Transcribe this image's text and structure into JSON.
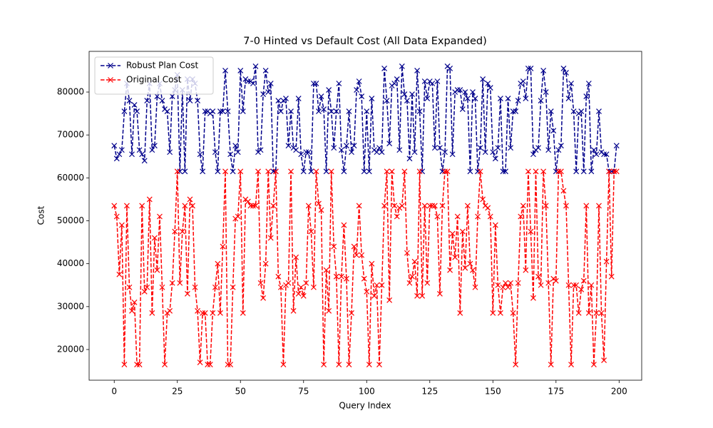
{
  "chart_data": {
    "type": "line",
    "title": "7-0 Hinted vs Default Cost (All Data Expanded)",
    "x_label": "Query Index",
    "y_label": "Cost",
    "legend": "upper left",
    "x": [
      0,
      1,
      2,
      3,
      4,
      5,
      6,
      7,
      8,
      9,
      10,
      11,
      12,
      13,
      14,
      15,
      16,
      17,
      18,
      19,
      20,
      21,
      22,
      23,
      24,
      25,
      26,
      27,
      28,
      29,
      30,
      31,
      32,
      33,
      34,
      35,
      36,
      37,
      38,
      39,
      40,
      41,
      42,
      43,
      44,
      45,
      46,
      47,
      48,
      49,
      50,
      51,
      52,
      53,
      54,
      55,
      56,
      57,
      58,
      59,
      60,
      61,
      62,
      63,
      64,
      65,
      66,
      67,
      68,
      69,
      70,
      71,
      72,
      73,
      74,
      75,
      76,
      77,
      78,
      79,
      80,
      81,
      82,
      83,
      84,
      85,
      86,
      87,
      88,
      89,
      90,
      91,
      92,
      93,
      94,
      95,
      96,
      97,
      98,
      99,
      100,
      101,
      102,
      103,
      104,
      105,
      106,
      107,
      108,
      109,
      110,
      111,
      112,
      113,
      114,
      115,
      116,
      117,
      118,
      119,
      120,
      121,
      122,
      123,
      124,
      125,
      126,
      127,
      128,
      129,
      130,
      131,
      132,
      133,
      134,
      135,
      136,
      137,
      138,
      139,
      140,
      141,
      142,
      143,
      144,
      145,
      146,
      147,
      148,
      149,
      150,
      151,
      152,
      153,
      154,
      155,
      156,
      157,
      158,
      159,
      160,
      161,
      162,
      163,
      164,
      165,
      166,
      167,
      168,
      169,
      170,
      171,
      172,
      173,
      174,
      175,
      176,
      177,
      178,
      179,
      180,
      181,
      182,
      183,
      184,
      185,
      186,
      187,
      188,
      189,
      190,
      191,
      192,
      193,
      194,
      195,
      196,
      197,
      198,
      199
    ],
    "series": [
      {
        "name": "Robust Plan Cost",
        "color": "#00008b",
        "values": [
          67500,
          64500,
          65500,
          66500,
          75500,
          82000,
          78000,
          65500,
          77000,
          75500,
          66500,
          65500,
          64000,
          78000,
          82000,
          66500,
          67500,
          79000,
          82000,
          78000,
          76000,
          75500,
          66000,
          79000,
          80500,
          84000,
          61500,
          80500,
          61500,
          83000,
          78000,
          83000,
          82000,
          78000,
          65500,
          61500,
          75500,
          75500,
          75000,
          75500,
          66000,
          61500,
          75500,
          75500,
          85000,
          75500,
          65500,
          61500,
          67500,
          66000,
          85000,
          75500,
          83000,
          82500,
          82500,
          82000,
          86000,
          66000,
          66500,
          79500,
          85000,
          80000,
          82000,
          61500,
          61500,
          78000,
          75500,
          78000,
          78500,
          67500,
          75500,
          67000,
          66500,
          78500,
          65500,
          61500,
          66000,
          66000,
          61500,
          82000,
          82000,
          75500,
          79000,
          76000,
          61500,
          80500,
          75500,
          67000,
          75500,
          82000,
          66500,
          61500,
          67500,
          75500,
          66000,
          67500,
          80500,
          82500,
          79000,
          61500,
          75500,
          61500,
          78500,
          66500,
          66000,
          67000,
          66000,
          85500,
          78000,
          68000,
          81500,
          82000,
          83000,
          66500,
          86000,
          79500,
          78000,
          64500,
          79500,
          66000,
          85000,
          75500,
          61500,
          82500,
          78500,
          82500,
          82000,
          67000,
          82500,
          67000,
          61500,
          66000,
          86000,
          85500,
          65500,
          80000,
          80500,
          80500,
          76000,
          80000,
          78500,
          61500,
          80000,
          78500,
          61500,
          67000,
          83000,
          66000,
          82000,
          81000,
          66000,
          64500,
          67000,
          78500,
          61500,
          61500,
          78500,
          67000,
          75500,
          75500,
          78000,
          82000,
          82500,
          78500,
          85500,
          85500,
          65500,
          66500,
          67000,
          78000,
          85000,
          80000,
          66500,
          75500,
          71000,
          61500,
          66500,
          67500,
          85500,
          84500,
          78500,
          82000,
          75500,
          61500,
          75000,
          75500,
          61500,
          79000,
          82000,
          61500,
          66500,
          65500,
          75500,
          66000,
          65500,
          65500,
          61500,
          61500,
          61500,
          67500
        ]
      },
      {
        "name": "Original Cost",
        "color": "#ff0000",
        "values": [
          53500,
          51000,
          37500,
          49000,
          16500,
          53500,
          34500,
          29000,
          31000,
          16500,
          16500,
          53500,
          33500,
          34500,
          55000,
          28500,
          46000,
          38500,
          51000,
          34500,
          16500,
          28500,
          29000,
          35500,
          47500,
          61500,
          35500,
          47500,
          53500,
          33000,
          55000,
          53500,
          34500,
          29000,
          17000,
          28500,
          28500,
          16500,
          16500,
          28500,
          34500,
          40000,
          28500,
          44000,
          61500,
          16500,
          16500,
          34500,
          50500,
          51000,
          61500,
          28500,
          55000,
          54500,
          53500,
          53500,
          53500,
          61500,
          35500,
          32000,
          40000,
          61500,
          46000,
          53500,
          61500,
          37000,
          34500,
          16500,
          35000,
          35500,
          61500,
          29000,
          41500,
          33000,
          34500,
          32500,
          35500,
          53500,
          47500,
          34500,
          61500,
          54000,
          52500,
          16500,
          38500,
          29000,
          61500,
          44000,
          37000,
          16500,
          37000,
          49000,
          36500,
          16500,
          28500,
          44000,
          42000,
          53500,
          42000,
          36500,
          33500,
          16500,
          40000,
          32500,
          35000,
          16500,
          35000,
          53500,
          61500,
          31500,
          61500,
          53500,
          51000,
          53000,
          53500,
          61500,
          42500,
          35500,
          37000,
          40500,
          32500,
          61500,
          32500,
          53500,
          35500,
          53500,
          53500,
          53500,
          51000,
          33000,
          53500,
          61500,
          61500,
          38500,
          47000,
          41500,
          51000,
          28500,
          47500,
          39000,
          53500,
          40000,
          38500,
          34500,
          51000,
          61500,
          55000,
          53500,
          53000,
          51000,
          28500,
          49000,
          35000,
          28500,
          34500,
          35500,
          34500,
          35500,
          28500,
          16500,
          35500,
          51000,
          53500,
          38500,
          61500,
          47500,
          32000,
          61500,
          37000,
          35000,
          61500,
          53500,
          35500,
          16500,
          36500,
          36000,
          61500,
          61500,
          57000,
          53500,
          35000,
          16500,
          35000,
          35000,
          28500,
          34000,
          36000,
          53500,
          28500,
          35000,
          16500,
          28500,
          53500,
          28500,
          17500,
          40500,
          61500,
          37000,
          61500,
          61500
        ]
      }
    ],
    "xlim": [
      -9.95,
      208.95
    ],
    "ylim": [
      12850,
      89480
    ],
    "xticks": [
      0,
      25,
      50,
      75,
      100,
      125,
      150,
      175,
      200
    ],
    "yticks": [
      20000,
      30000,
      40000,
      50000,
      60000,
      70000,
      80000
    ]
  }
}
